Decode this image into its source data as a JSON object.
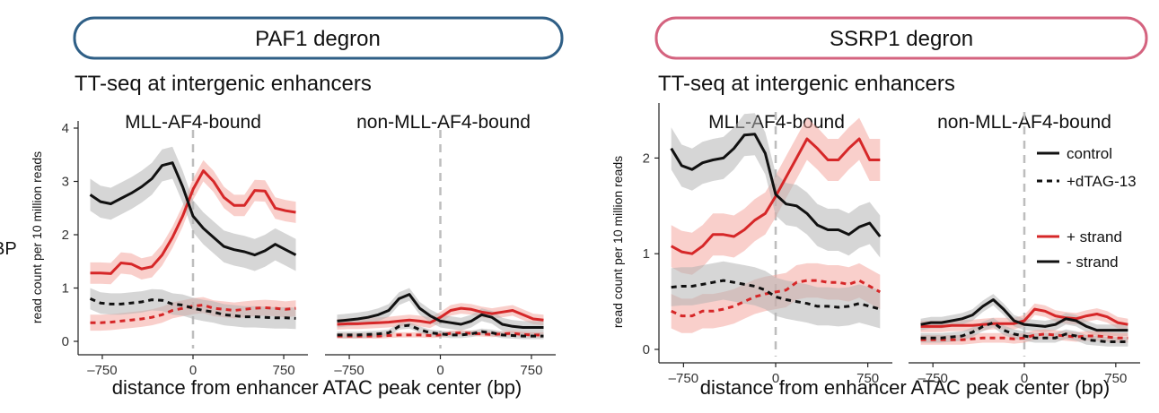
{
  "left_edge_text": "BP",
  "panels": [
    {
      "pill_label": "PAF1 degron",
      "pill_color": "#2f5f86",
      "title": "TT-seq at intergenic enhancers",
      "ylabel": "read count per 10 million reads",
      "xlabel": "distance from enhancer ATAC peak center (bp)"
    },
    {
      "pill_label": "SSRP1 degron",
      "pill_color": "#d4637f",
      "title": "TT-seq at intergenic enhancers",
      "ylabel": "read count per 10 million reads",
      "xlabel": "distance from enhancer ATAC peak center (bp)"
    }
  ],
  "legend": {
    "control": "control",
    "dtag": "+dTAG-13",
    "plus_strand": "+ strand",
    "minus_strand": "- strand"
  },
  "colors": {
    "plus_strand": "#d62728",
    "minus_strand": "#111111",
    "plus_band": "#f4a8a0",
    "minus_band": "#b5b5b5",
    "zero_line": "#bdbdbd"
  },
  "chart_data": [
    {
      "type": "line",
      "panel": "PAF1 degron",
      "ylim": [
        0,
        4
      ],
      "yticks": [
        0,
        1,
        2,
        3,
        4
      ],
      "xlim": [
        -950,
        950
      ],
      "xticks": [
        -750,
        0,
        750
      ],
      "xtick_labels": [
        "-750",
        "0",
        "750"
      ],
      "x": [
        -850,
        -765,
        -680,
        -595,
        -510,
        -425,
        -340,
        -255,
        -170,
        -85,
        0,
        85,
        170,
        255,
        340,
        425,
        510,
        595,
        680,
        765,
        850
      ],
      "facets": [
        {
          "label": "MLL-AF4-bound",
          "series": [
            {
              "strand": "+",
              "condition": "control",
              "values": [
                1.28,
                1.28,
                1.27,
                1.47,
                1.45,
                1.36,
                1.4,
                1.62,
                1.95,
                2.35,
                2.85,
                3.2,
                3.0,
                2.7,
                2.55,
                2.55,
                2.83,
                2.82,
                2.5,
                2.45,
                2.42
              ],
              "band": 0.2
            },
            {
              "strand": "-",
              "condition": "control",
              "values": [
                2.75,
                2.62,
                2.58,
                2.68,
                2.78,
                2.9,
                3.05,
                3.3,
                3.35,
                2.9,
                2.35,
                2.12,
                1.95,
                1.78,
                1.72,
                1.68,
                1.62,
                1.7,
                1.82,
                1.72,
                1.62
              ],
              "band": 0.3
            },
            {
              "strand": "+",
              "condition": "+dTAG-13",
              "values": [
                0.35,
                0.35,
                0.36,
                0.38,
                0.4,
                0.42,
                0.45,
                0.5,
                0.58,
                0.62,
                0.66,
                0.68,
                0.62,
                0.6,
                0.58,
                0.6,
                0.62,
                0.63,
                0.62,
                0.6,
                0.62
              ],
              "band": 0.15
            },
            {
              "strand": "-",
              "condition": "+dTAG-13",
              "values": [
                0.8,
                0.72,
                0.7,
                0.7,
                0.72,
                0.74,
                0.78,
                0.77,
                0.7,
                0.68,
                0.62,
                0.58,
                0.55,
                0.5,
                0.48,
                0.46,
                0.46,
                0.45,
                0.44,
                0.44,
                0.43
              ],
              "band": 0.2
            }
          ]
        },
        {
          "label": "non-MLL-AF4-bound",
          "series": [
            {
              "strand": "+",
              "condition": "control",
              "values": [
                0.32,
                0.33,
                0.33,
                0.34,
                0.35,
                0.36,
                0.38,
                0.4,
                0.38,
                0.35,
                0.45,
                0.58,
                0.62,
                0.6,
                0.55,
                0.52,
                0.55,
                0.58,
                0.5,
                0.42,
                0.4
              ],
              "band": 0.1
            },
            {
              "strand": "-",
              "condition": "control",
              "values": [
                0.38,
                0.4,
                0.42,
                0.45,
                0.5,
                0.58,
                0.8,
                0.88,
                0.62,
                0.48,
                0.38,
                0.35,
                0.32,
                0.38,
                0.5,
                0.45,
                0.32,
                0.28,
                0.26,
                0.26,
                0.26
              ],
              "band": 0.12
            },
            {
              "strand": "+",
              "condition": "+dTAG-13",
              "values": [
                0.1,
                0.1,
                0.1,
                0.1,
                0.1,
                0.11,
                0.12,
                0.12,
                0.12,
                0.11,
                0.12,
                0.15,
                0.16,
                0.15,
                0.14,
                0.13,
                0.14,
                0.15,
                0.13,
                0.12,
                0.12
              ],
              "band": 0.05
            },
            {
              "strand": "-",
              "condition": "+dTAG-13",
              "values": [
                0.12,
                0.12,
                0.12,
                0.13,
                0.14,
                0.16,
                0.28,
                0.3,
                0.22,
                0.16,
                0.14,
                0.12,
                0.12,
                0.14,
                0.18,
                0.16,
                0.12,
                0.11,
                0.1,
                0.1,
                0.1
              ],
              "band": 0.06
            }
          ]
        }
      ]
    },
    {
      "type": "line",
      "panel": "SSRP1 degron",
      "ylim": [
        0,
        2.5
      ],
      "yticks": [
        0,
        1,
        2
      ],
      "xlim": [
        -950,
        950
      ],
      "xticks": [
        -750,
        0,
        750
      ],
      "xtick_labels": [
        "-750",
        "0",
        "750"
      ],
      "x": [
        -850,
        -765,
        -680,
        -595,
        -510,
        -425,
        -340,
        -255,
        -170,
        -85,
        0,
        85,
        170,
        255,
        340,
        425,
        510,
        595,
        680,
        765,
        850
      ],
      "facets": [
        {
          "label": "MLL-AF4-bound",
          "series": [
            {
              "strand": "+",
              "condition": "control",
              "values": [
                1.08,
                1.02,
                1.0,
                1.08,
                1.2,
                1.2,
                1.18,
                1.25,
                1.35,
                1.42,
                1.6,
                1.8,
                2.0,
                2.2,
                2.1,
                1.98,
                1.98,
                2.1,
                2.2,
                1.98,
                1.98
              ],
              "band": 0.22
            },
            {
              "strand": "-",
              "condition": "control",
              "values": [
                2.1,
                1.92,
                1.88,
                1.95,
                1.98,
                2.0,
                2.1,
                2.24,
                2.25,
                2.05,
                1.62,
                1.52,
                1.5,
                1.42,
                1.3,
                1.25,
                1.25,
                1.2,
                1.28,
                1.32,
                1.18
              ],
              "band": 0.22
            },
            {
              "strand": "+",
              "condition": "+dTAG-13",
              "values": [
                0.4,
                0.35,
                0.35,
                0.4,
                0.4,
                0.42,
                0.45,
                0.5,
                0.55,
                0.58,
                0.6,
                0.62,
                0.7,
                0.72,
                0.72,
                0.7,
                0.7,
                0.68,
                0.72,
                0.66,
                0.6
              ],
              "band": 0.18
            },
            {
              "strand": "-",
              "condition": "+dTAG-13",
              "values": [
                0.65,
                0.66,
                0.66,
                0.68,
                0.7,
                0.72,
                0.7,
                0.68,
                0.66,
                0.62,
                0.55,
                0.52,
                0.5,
                0.48,
                0.45,
                0.45,
                0.44,
                0.45,
                0.48,
                0.45,
                0.42
              ],
              "band": 0.2
            }
          ]
        },
        {
          "label": "non-MLL-AF4-bound",
          "series": [
            {
              "strand": "+",
              "condition": "control",
              "values": [
                0.24,
                0.24,
                0.24,
                0.25,
                0.25,
                0.25,
                0.26,
                0.27,
                0.27,
                0.27,
                0.3,
                0.42,
                0.4,
                0.35,
                0.33,
                0.32,
                0.35,
                0.37,
                0.34,
                0.28,
                0.26
              ],
              "band": 0.06
            },
            {
              "strand": "-",
              "condition": "control",
              "values": [
                0.26,
                0.28,
                0.28,
                0.3,
                0.32,
                0.36,
                0.45,
                0.52,
                0.42,
                0.3,
                0.26,
                0.25,
                0.24,
                0.26,
                0.32,
                0.3,
                0.24,
                0.2,
                0.2,
                0.2,
                0.2
              ],
              "band": 0.06
            },
            {
              "strand": "+",
              "condition": "+dTAG-13",
              "values": [
                0.1,
                0.1,
                0.1,
                0.1,
                0.1,
                0.11,
                0.12,
                0.12,
                0.12,
                0.11,
                0.12,
                0.15,
                0.16,
                0.15,
                0.14,
                0.13,
                0.14,
                0.14,
                0.13,
                0.12,
                0.12
              ],
              "band": 0.05
            },
            {
              "strand": "-",
              "condition": "+dTAG-13",
              "values": [
                0.12,
                0.12,
                0.12,
                0.13,
                0.14,
                0.18,
                0.24,
                0.28,
                0.2,
                0.16,
                0.14,
                0.12,
                0.12,
                0.12,
                0.16,
                0.14,
                0.1,
                0.09,
                0.08,
                0.08,
                0.08
              ],
              "band": 0.05
            }
          ]
        }
      ]
    }
  ]
}
